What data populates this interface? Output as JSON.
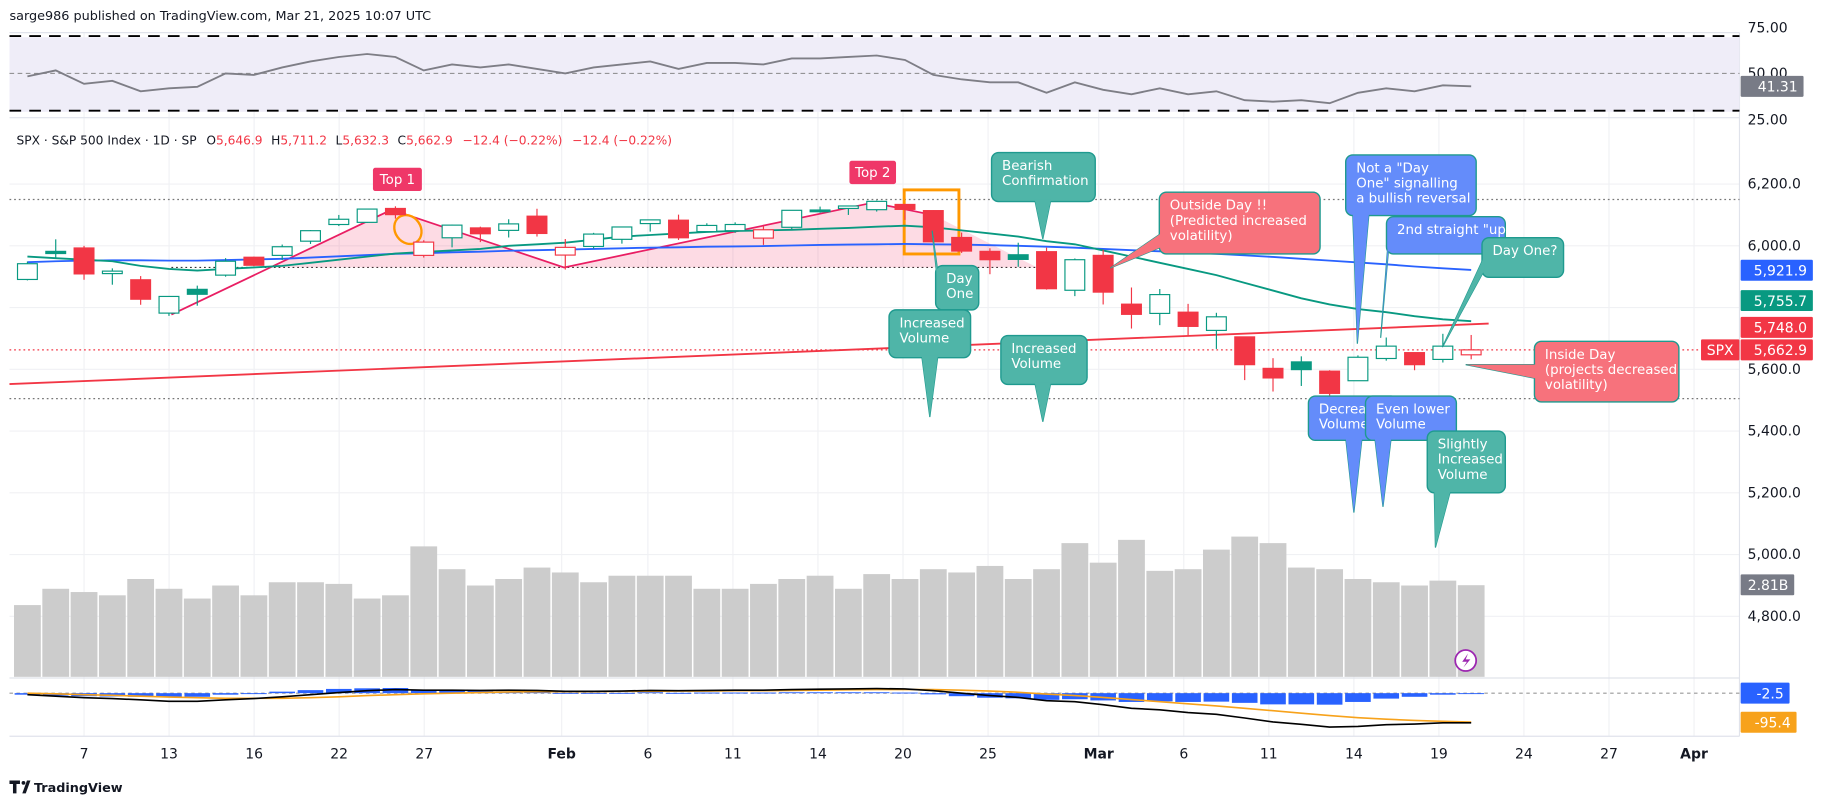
{
  "header": {
    "published": "sarge986 published on TradingView.com, Mar 21, 2025 10:07 UTC"
  },
  "legend": {
    "symbol": "SPX · S&P 500 Index · 1D · SP",
    "open_label": "O",
    "open": "5,646.9",
    "high_label": "H",
    "high": "5,711.2",
    "low_label": "L",
    "low": "5,632.3",
    "close_label": "C",
    "close": "5,662.9",
    "change": "−12.4 (−0.22%)",
    "change2": "−12.4 (−0.22%)"
  },
  "colors": {
    "up": "#089981",
    "down": "#f23645",
    "sma_blue": "#2962ff",
    "sma_green": "#089981",
    "sma_red": "#f23645",
    "rsi": "#7e7e86",
    "volume": "#cccccc",
    "macd": "#000000",
    "signal": "#f7a21b",
    "hist": "#2962ff",
    "callout_teal": "#4fb5a8",
    "callout_blue": "#648cfa",
    "callout_red": "#f7727c",
    "tag_pink": "#ef3768",
    "highlight_orange": "#ff9800"
  },
  "rsi_axis": {
    "ticks": [
      "75.00",
      "50.00",
      "25.00"
    ],
    "current": "41.31"
  },
  "price_axis": {
    "ticks": [
      "6,200.0",
      "6,000.0",
      "5,600.0",
      "5,400.0",
      "5,200.0",
      "5,000.0",
      "4,800.0"
    ],
    "sma_blue_value": "5,921.9",
    "sma_green_value": "5,755.7",
    "sma_red_value": "5,748.0",
    "symbol_tag": "SPX",
    "last_price": "5,662.9",
    "volume_value": "2.81B"
  },
  "macd_axis": {
    "hist_value": "-2.5",
    "signal_value": "-95.4"
  },
  "x_axis": {
    "labels": [
      "7",
      "13",
      "16",
      "22",
      "27",
      "Feb",
      "6",
      "11",
      "14",
      "20",
      "25",
      "Mar",
      "6",
      "11",
      "14",
      "19",
      "24",
      "27",
      "Apr"
    ]
  },
  "footer": {
    "logo": "TradingView"
  },
  "chart_data": {
    "type": "candlestick",
    "symbol": "SPX",
    "interval": "1D",
    "dates": [
      "Jan 3",
      "Jan 6",
      "Jan 7",
      "Jan 8",
      "Jan 10",
      "Jan 13",
      "Jan 14",
      "Jan 15",
      "Jan 16",
      "Jan 17",
      "Jan 21",
      "Jan 22",
      "Jan 23",
      "Jan 24",
      "Jan 27",
      "Jan 28",
      "Jan 29",
      "Jan 30",
      "Jan 31",
      "Feb 3",
      "Feb 4",
      "Feb 5",
      "Feb 6",
      "Feb 7",
      "Feb 10",
      "Feb 11",
      "Feb 12",
      "Feb 13",
      "Feb 14",
      "Feb 18",
      "Feb 19",
      "Feb 20",
      "Feb 21",
      "Feb 24",
      "Feb 25",
      "Feb 26",
      "Feb 27",
      "Feb 28",
      "Mar 3",
      "Mar 4",
      "Mar 5",
      "Mar 6",
      "Mar 7",
      "Mar 10",
      "Mar 11",
      "Mar 12",
      "Mar 13",
      "Mar 14",
      "Mar 17",
      "Mar 18",
      "Mar 19",
      "Mar 20"
    ],
    "ohlc": [
      [
        5891,
        5949,
        5888,
        5942
      ],
      [
        5982,
        6021,
        5960,
        5975
      ],
      [
        5993,
        6000,
        5890,
        5909
      ],
      [
        5910,
        5927,
        5874,
        5918
      ],
      [
        5890,
        5902,
        5809,
        5827
      ],
      [
        5782,
        5837,
        5773,
        5836
      ],
      [
        5859,
        5871,
        5806,
        5843
      ],
      [
        5905,
        5960,
        5900,
        5950
      ],
      [
        5963,
        5965,
        5934,
        5937
      ],
      [
        5969,
        6004,
        5954,
        5997
      ],
      [
        6015,
        6051,
        6006,
        6049
      ],
      [
        6069,
        6100,
        6064,
        6086
      ],
      [
        6076,
        6118,
        6074,
        6119
      ],
      [
        6121,
        6128,
        6088,
        6101
      ],
      [
        5969,
        6018,
        5962,
        6012
      ],
      [
        6026,
        6069,
        5995,
        6067
      ],
      [
        6058,
        6062,
        6012,
        6039
      ],
      [
        6050,
        6086,
        6027,
        6071
      ],
      [
        6096,
        6120,
        6030,
        6040
      ],
      [
        5970,
        6022,
        5923,
        5995
      ],
      [
        5998,
        6042,
        5991,
        6038
      ],
      [
        6021,
        6062,
        6007,
        6061
      ],
      [
        6072,
        6084,
        6046,
        6084
      ],
      [
        6083,
        6101,
        6019,
        6026
      ],
      [
        6046,
        6073,
        6045,
        6066
      ],
      [
        6049,
        6076,
        6042,
        6069
      ],
      [
        6025,
        6064,
        6003,
        6052
      ],
      [
        6060,
        6116,
        6051,
        6115
      ],
      [
        6116,
        6127,
        6107,
        6115
      ],
      [
        6121,
        6129,
        6100,
        6129
      ],
      [
        6117,
        6147,
        6111,
        6144
      ],
      [
        6134,
        6134,
        6084,
        6118
      ],
      [
        6114,
        6115,
        6009,
        6013
      ],
      [
        6027,
        6043,
        5977,
        5983
      ],
      [
        5982,
        5992,
        5908,
        5955
      ],
      [
        5971,
        6010,
        5932,
        5956
      ],
      [
        5981,
        5994,
        5858,
        5861
      ],
      [
        5856,
        5959,
        5837,
        5955
      ],
      [
        5969,
        5987,
        5810,
        5850
      ],
      [
        5811,
        5865,
        5732,
        5778
      ],
      [
        5781,
        5860,
        5743,
        5842
      ],
      [
        5785,
        5812,
        5711,
        5739
      ],
      [
        5726,
        5783,
        5666,
        5770
      ],
      [
        5705,
        5705,
        5565,
        5615
      ],
      [
        5603,
        5636,
        5528,
        5572
      ],
      [
        5624,
        5642,
        5546,
        5599
      ],
      [
        5594,
        5597,
        5504,
        5522
      ],
      [
        5563,
        5645,
        5563,
        5639
      ],
      [
        5635,
        5703,
        5628,
        5675
      ],
      [
        5654,
        5654,
        5597,
        5615
      ],
      [
        5632,
        5715,
        5622,
        5675
      ],
      [
        5646.9,
        5711.2,
        5632.3,
        5662.9
      ]
    ],
    "volume_billions": [
      2.2,
      2.7,
      2.6,
      2.5,
      3.0,
      2.7,
      2.4,
      2.8,
      2.5,
      2.9,
      2.9,
      2.85,
      2.4,
      2.5,
      4.0,
      3.3,
      2.8,
      3.0,
      3.35,
      3.2,
      2.9,
      3.1,
      3.1,
      3.1,
      2.7,
      2.7,
      2.85,
      3.0,
      3.1,
      2.7,
      3.15,
      3.0,
      3.3,
      3.2,
      3.4,
      3.0,
      3.3,
      4.1,
      3.5,
      4.2,
      3.25,
      3.3,
      3.9,
      4.3,
      4.1,
      3.35,
      3.3,
      3.0,
      2.9,
      2.8,
      2.95,
      2.81
    ],
    "sma_blue": [
      5947,
      5950,
      5952,
      5953,
      5953,
      5952,
      5952,
      5954,
      5956,
      5958,
      5962,
      5966,
      5970,
      5974,
      5976,
      5979,
      5981,
      5984,
      5986,
      5988,
      5990,
      5992,
      5994,
      5995,
      5997,
      5998,
      5999,
      6001,
      6003,
      6004,
      6005,
      6006,
      6005,
      6004,
      6002,
      6000,
      5997,
      5994,
      5990,
      5986,
      5982,
      5978,
      5974,
      5969,
      5964,
      5958,
      5952,
      5946,
      5940,
      5933,
      5927,
      5921.9
    ],
    "sma_green": [
      5965,
      5960,
      5955,
      5950,
      5935,
      5925,
      5920,
      5925,
      5930,
      5935,
      5945,
      5955,
      5965,
      5975,
      5980,
      5985,
      5990,
      6000,
      6005,
      6010,
      6020,
      6030,
      6035,
      6040,
      6045,
      6048,
      6050,
      6052,
      6055,
      6058,
      6062,
      6065,
      6060,
      6050,
      6040,
      6030,
      6015,
      6005,
      5985,
      5965,
      5945,
      5925,
      5905,
      5880,
      5855,
      5830,
      5810,
      5795,
      5785,
      5772,
      5762,
      5755.7
    ],
    "sma_red": {
      "first": 5552,
      "last": 5748.0
    },
    "rsi": [
      48,
      52,
      43,
      45,
      38,
      40,
      41,
      50,
      49,
      54,
      58,
      61,
      63,
      61,
      52,
      56,
      54,
      56,
      53,
      50,
      54,
      56,
      58,
      53,
      57,
      57,
      56,
      60,
      60,
      61,
      62,
      59,
      49,
      46,
      44,
      44,
      37,
      44,
      39,
      36,
      40,
      36,
      38,
      32,
      31,
      32,
      30,
      37,
      40,
      38,
      42,
      41.31
    ],
    "rsi_levels": [
      75,
      50,
      25
    ],
    "macd": [
      -5,
      -10,
      -15,
      -18,
      -22,
      -27,
      -27,
      -22,
      -18,
      -12,
      -5,
      2,
      8,
      12,
      10,
      10,
      9,
      10,
      9,
      6,
      6,
      7,
      9,
      8,
      9,
      10,
      10,
      12,
      13,
      14,
      15,
      14,
      8,
      0,
      -8,
      -14,
      -25,
      -28,
      -38,
      -50,
      -55,
      -64,
      -70,
      -82,
      -95,
      -103,
      -112,
      -110,
      -104,
      -102,
      -98,
      -97.9
    ],
    "signal": [
      0,
      -2,
      -5,
      -7,
      -10,
      -13,
      -15,
      -17,
      -17,
      -17,
      -15,
      -12,
      -8,
      -5,
      -2,
      0,
      2,
      4,
      5,
      5,
      5,
      6,
      6,
      7,
      7,
      8,
      8,
      9,
      10,
      11,
      12,
      12,
      12,
      10,
      7,
      3,
      -3,
      -8,
      -14,
      -21,
      -28,
      -35,
      -42,
      -50,
      -58,
      -66,
      -74,
      -81,
      -86,
      -90,
      -93,
      -95.4
    ],
    "price_range": [
      4750,
      6390
    ],
    "reference_levels": [
      6150,
      5930,
      5505
    ]
  },
  "annotations": [
    {
      "style": "tag_pink",
      "lines": [
        "Top 1"
      ]
    },
    {
      "style": "tag_pink",
      "lines": [
        "Top 2"
      ]
    },
    {
      "style": "callout_teal",
      "lines": [
        "Bearish",
        "Confirmation"
      ]
    },
    {
      "style": "callout_teal",
      "lines": [
        "Day",
        "One"
      ]
    },
    {
      "style": "callout_teal",
      "lines": [
        "Increased",
        "Volume"
      ]
    },
    {
      "style": "callout_teal",
      "lines": [
        "Increased",
        "Volume"
      ]
    },
    {
      "style": "callout_red",
      "lines": [
        "Outside Day !!",
        "(Predicted increased",
        "volatility)"
      ]
    },
    {
      "style": "callout_blue",
      "lines": [
        "Not a \"Day",
        "One\" signalling",
        "a bullish reversal"
      ]
    },
    {
      "style": "callout_blue",
      "lines": [
        "2nd straight \"up\" day"
      ]
    },
    {
      "style": "callout_teal",
      "lines": [
        "Day One?"
      ]
    },
    {
      "style": "callout_red",
      "lines": [
        "Inside Day",
        "(projects decreased",
        "volatility)"
      ]
    },
    {
      "style": "callout_blue",
      "lines": [
        "Decreased",
        "Volume"
      ]
    },
    {
      "style": "callout_blue",
      "lines": [
        "Even lower",
        "Volume"
      ]
    },
    {
      "style": "callout_teal",
      "lines": [
        "Slightly",
        "Increased",
        "Volume"
      ]
    }
  ]
}
